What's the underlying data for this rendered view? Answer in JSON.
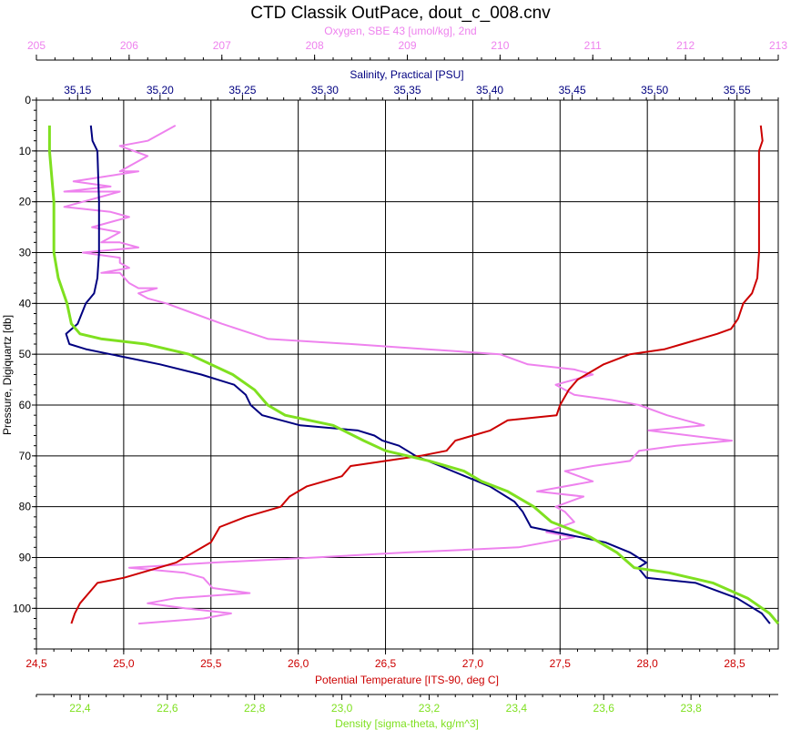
{
  "chart_data": {
    "type": "line",
    "title": "CTD Classik OutPace, dout_c_008.cnv",
    "y_axis": {
      "label": "Pressure, Digiquartz [db]",
      "range": [
        0,
        108
      ],
      "ticks": [
        0,
        10,
        20,
        30,
        40,
        50,
        60,
        70,
        80,
        90,
        100
      ],
      "tick_labels": [
        "0",
        "10",
        "20",
        "30",
        "40",
        "50",
        "60",
        "70",
        "80",
        "90",
        "100"
      ],
      "inverted": true
    },
    "x_axes": {
      "oxygen": {
        "label": "Oxygen, SBE 43 [umol/kg], 2nd",
        "position": "top",
        "color": "#ee82ee",
        "range": [
          205,
          213
        ],
        "ticks": [
          205,
          206,
          207,
          208,
          209,
          210,
          211,
          212,
          213
        ],
        "tick_labels": [
          "205",
          "206",
          "207",
          "208",
          "209",
          "210",
          "211",
          "212",
          "213"
        ]
      },
      "salinity": {
        "label": "Salinity, Practical [PSU]",
        "position": "top",
        "color": "#000080",
        "range": [
          35.125,
          35.575
        ],
        "ticks": [
          35.15,
          35.2,
          35.25,
          35.3,
          35.35,
          35.4,
          35.45,
          35.5,
          35.55
        ],
        "tick_labels": [
          "35,15",
          "35,20",
          "35,25",
          "35,30",
          "35,35",
          "35,40",
          "35,45",
          "35,50",
          "35,55"
        ]
      },
      "temperature": {
        "label": "Potential Temperature [ITS-90, deg C]",
        "position": "bottom",
        "color": "#cc0000",
        "range": [
          24.5,
          28.75
        ],
        "ticks": [
          24.5,
          25.0,
          25.5,
          26.0,
          26.5,
          27.0,
          27.5,
          28.0,
          28.5
        ],
        "tick_labels": [
          "24,5",
          "25,0",
          "25,5",
          "26,0",
          "26,5",
          "27,0",
          "27,5",
          "28,0",
          "28,5"
        ]
      },
      "density": {
        "label": "Density [sigma-theta, kg/m^3]",
        "position": "bottom",
        "color": "#7fe020",
        "range": [
          22.3,
          24.0
        ],
        "ticks": [
          22.4,
          22.6,
          22.8,
          23.0,
          23.2,
          23.4,
          23.6,
          23.8
        ],
        "tick_labels": [
          "22,4",
          "22,6",
          "22,8",
          "23,0",
          "23,2",
          "23,4",
          "23,6",
          "23,8"
        ]
      }
    },
    "grid": true,
    "series": [
      {
        "name": "Oxygen, SBE 43 [umol/kg], 2nd",
        "axis": "oxygen",
        "color": "#ee82ee",
        "points": [
          [
            206.5,
            5
          ],
          [
            206.2,
            8
          ],
          [
            205.9,
            9
          ],
          [
            206.2,
            11
          ],
          [
            206.0,
            13
          ],
          [
            205.9,
            14
          ],
          [
            206.1,
            14
          ],
          [
            205.4,
            16
          ],
          [
            205.8,
            17
          ],
          [
            205.3,
            18
          ],
          [
            205.9,
            18
          ],
          [
            205.7,
            19
          ],
          [
            205.5,
            20
          ],
          [
            205.3,
            21
          ],
          [
            205.8,
            22
          ],
          [
            206.0,
            23
          ],
          [
            205.6,
            25
          ],
          [
            205.9,
            26
          ],
          [
            205.7,
            28
          ],
          [
            205.9,
            28
          ],
          [
            206.1,
            29
          ],
          [
            205.5,
            30
          ],
          [
            205.9,
            31
          ],
          [
            205.9,
            32
          ],
          [
            206.0,
            33
          ],
          [
            205.7,
            34
          ],
          [
            205.9,
            34
          ],
          [
            206.0,
            36
          ],
          [
            206.1,
            37
          ],
          [
            206.3,
            37
          ],
          [
            206.1,
            38
          ],
          [
            206.2,
            39
          ],
          [
            206.4,
            40
          ],
          [
            206.7,
            42
          ],
          [
            207.0,
            44
          ],
          [
            207.5,
            47
          ],
          [
            208.4,
            48
          ],
          [
            209.2,
            49
          ],
          [
            210.0,
            50
          ],
          [
            210.3,
            52
          ],
          [
            210.8,
            53
          ],
          [
            211.0,
            54
          ],
          [
            210.6,
            56
          ],
          [
            210.8,
            58
          ],
          [
            211.2,
            59
          ],
          [
            211.5,
            60
          ],
          [
            211.8,
            62
          ],
          [
            212.0,
            63
          ],
          [
            212.2,
            64
          ],
          [
            211.6,
            65
          ],
          [
            212.5,
            67
          ],
          [
            211.9,
            68
          ],
          [
            211.5,
            69
          ],
          [
            211.4,
            71
          ],
          [
            211.0,
            72
          ],
          [
            210.7,
            73
          ],
          [
            211.0,
            75
          ],
          [
            210.4,
            77
          ],
          [
            210.9,
            78
          ],
          [
            210.6,
            80
          ],
          [
            210.7,
            81
          ],
          [
            210.8,
            83
          ],
          [
            210.5,
            85
          ],
          [
            210.8,
            86
          ],
          [
            210.2,
            88
          ],
          [
            209.0,
            89
          ],
          [
            208.0,
            90
          ],
          [
            206.9,
            91
          ],
          [
            206.0,
            92
          ],
          [
            206.6,
            93
          ],
          [
            206.8,
            94
          ],
          [
            206.9,
            96
          ],
          [
            207.3,
            97
          ],
          [
            206.5,
            98
          ],
          [
            206.2,
            99
          ],
          [
            206.6,
            100
          ],
          [
            207.1,
            101
          ],
          [
            206.8,
            102
          ],
          [
            206.1,
            103
          ]
        ]
      },
      {
        "name": "Salinity, Practical [PSU]",
        "axis": "salinity",
        "color": "#000080",
        "points": [
          [
            35.158,
            5
          ],
          [
            35.159,
            8
          ],
          [
            35.162,
            10
          ],
          [
            35.163,
            20
          ],
          [
            35.163,
            30
          ],
          [
            35.162,
            35
          ],
          [
            35.16,
            38
          ],
          [
            35.155,
            40
          ],
          [
            35.15,
            44
          ],
          [
            35.143,
            46
          ],
          [
            35.145,
            48
          ],
          [
            35.155,
            49
          ],
          [
            35.17,
            50
          ],
          [
            35.2,
            52
          ],
          [
            35.225,
            54
          ],
          [
            35.245,
            56
          ],
          [
            35.252,
            58
          ],
          [
            35.255,
            60
          ],
          [
            35.262,
            62
          ],
          [
            35.285,
            64
          ],
          [
            35.32,
            65
          ],
          [
            35.33,
            66
          ],
          [
            35.335,
            67
          ],
          [
            35.345,
            68
          ],
          [
            35.355,
            70
          ],
          [
            35.37,
            72
          ],
          [
            35.385,
            74
          ],
          [
            35.4,
            76
          ],
          [
            35.415,
            79
          ],
          [
            35.42,
            81
          ],
          [
            35.425,
            84
          ],
          [
            35.44,
            85
          ],
          [
            35.47,
            87
          ],
          [
            35.485,
            89
          ],
          [
            35.495,
            91
          ],
          [
            35.49,
            92
          ],
          [
            35.495,
            94
          ],
          [
            35.525,
            95
          ],
          [
            35.55,
            98
          ],
          [
            35.565,
            101
          ],
          [
            35.57,
            103
          ]
        ]
      },
      {
        "name": "Potential Temperature [ITS-90, deg C]",
        "axis": "temperature",
        "color": "#cc0000",
        "points": [
          [
            28.65,
            5
          ],
          [
            28.66,
            8
          ],
          [
            28.64,
            10
          ],
          [
            28.64,
            20
          ],
          [
            28.64,
            30
          ],
          [
            28.63,
            35
          ],
          [
            28.6,
            38
          ],
          [
            28.55,
            40
          ],
          [
            28.52,
            43
          ],
          [
            28.48,
            45
          ],
          [
            28.4,
            46
          ],
          [
            28.3,
            47
          ],
          [
            28.2,
            48
          ],
          [
            28.1,
            49
          ],
          [
            27.9,
            50
          ],
          [
            27.75,
            52
          ],
          [
            27.6,
            55
          ],
          [
            27.55,
            57
          ],
          [
            27.5,
            60
          ],
          [
            27.48,
            62
          ],
          [
            27.2,
            63
          ],
          [
            27.1,
            65
          ],
          [
            27.0,
            66
          ],
          [
            26.9,
            67
          ],
          [
            26.85,
            69
          ],
          [
            26.7,
            70
          ],
          [
            26.5,
            71
          ],
          [
            26.3,
            72
          ],
          [
            26.25,
            74
          ],
          [
            26.05,
            76
          ],
          [
            25.95,
            78
          ],
          [
            25.9,
            80
          ],
          [
            25.7,
            82
          ],
          [
            25.55,
            84
          ],
          [
            25.5,
            87
          ],
          [
            25.4,
            89
          ],
          [
            25.3,
            91
          ],
          [
            25.2,
            92
          ],
          [
            25.0,
            94
          ],
          [
            24.85,
            95
          ],
          [
            24.8,
            97
          ],
          [
            24.75,
            99
          ],
          [
            24.72,
            101
          ],
          [
            24.7,
            103
          ]
        ]
      },
      {
        "name": "Density [sigma-theta, kg/m^3]",
        "axis": "density",
        "color": "#7fe020",
        "points": [
          [
            22.33,
            5
          ],
          [
            22.33,
            10
          ],
          [
            22.34,
            20
          ],
          [
            22.34,
            30
          ],
          [
            22.35,
            35
          ],
          [
            22.37,
            40
          ],
          [
            22.38,
            44
          ],
          [
            22.4,
            46
          ],
          [
            22.45,
            47
          ],
          [
            22.55,
            48
          ],
          [
            22.65,
            50
          ],
          [
            22.75,
            54
          ],
          [
            22.8,
            57
          ],
          [
            22.83,
            60
          ],
          [
            22.87,
            62
          ],
          [
            22.98,
            64
          ],
          [
            23.05,
            67
          ],
          [
            23.1,
            69
          ],
          [
            23.2,
            71
          ],
          [
            23.28,
            73
          ],
          [
            23.32,
            75
          ],
          [
            23.38,
            77
          ],
          [
            23.44,
            80
          ],
          [
            23.48,
            83
          ],
          [
            23.57,
            86
          ],
          [
            23.63,
            89
          ],
          [
            23.67,
            92
          ],
          [
            23.75,
            93
          ],
          [
            23.85,
            95
          ],
          [
            23.93,
            98
          ],
          [
            23.98,
            101
          ],
          [
            24.0,
            103
          ]
        ]
      }
    ]
  }
}
